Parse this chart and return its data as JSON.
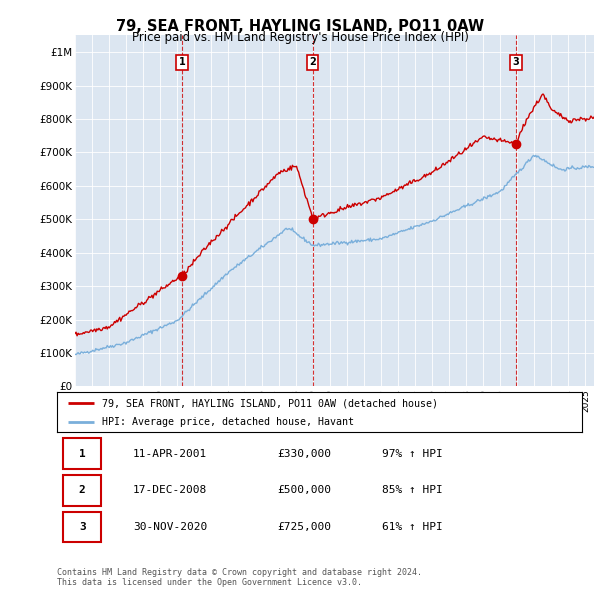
{
  "title": "79, SEA FRONT, HAYLING ISLAND, PO11 0AW",
  "subtitle": "Price paid vs. HM Land Registry's House Price Index (HPI)",
  "title_fontsize": 10.5,
  "subtitle_fontsize": 8.5,
  "ylim": [
    0,
    1050000
  ],
  "yticks": [
    0,
    100000,
    200000,
    300000,
    400000,
    500000,
    600000,
    700000,
    800000,
    900000,
    1000000
  ],
  "ytick_labels": [
    "£0",
    "£100K",
    "£200K",
    "£300K",
    "£400K",
    "£500K",
    "£600K",
    "£700K",
    "£800K",
    "£900K",
    "£1M"
  ],
  "hpi_color": "#7aafdb",
  "price_color": "#cc0000",
  "background_color": "#dce6f1",
  "sale_points": [
    {
      "date_num": 2001.28,
      "price": 330000,
      "label": "1"
    },
    {
      "date_num": 2008.96,
      "price": 500000,
      "label": "2"
    },
    {
      "date_num": 2020.91,
      "price": 725000,
      "label": "3"
    }
  ],
  "vline_dates": [
    2001.28,
    2008.96,
    2020.91
  ],
  "legend_entries": [
    "79, SEA FRONT, HAYLING ISLAND, PO11 0AW (detached house)",
    "HPI: Average price, detached house, Havant"
  ],
  "table_data": [
    [
      "1",
      "11-APR-2001",
      "£330,000",
      "97% ↑ HPI"
    ],
    [
      "2",
      "17-DEC-2008",
      "£500,000",
      "85% ↑ HPI"
    ],
    [
      "3",
      "30-NOV-2020",
      "£725,000",
      "61% ↑ HPI"
    ]
  ],
  "footer": "Contains HM Land Registry data © Crown copyright and database right 2024.\nThis data is licensed under the Open Government Licence v3.0.",
  "xmin": 1995.0,
  "xmax": 2025.5
}
